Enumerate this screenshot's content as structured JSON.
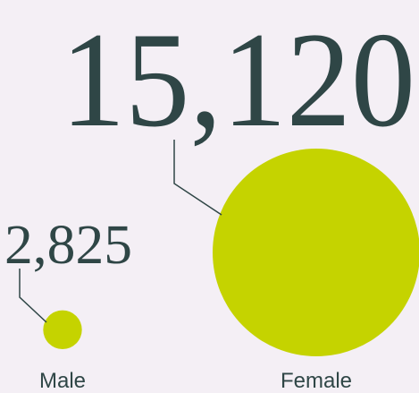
{
  "chart_data": {
    "type": "bubble",
    "categories": [
      "Male",
      "Female"
    ],
    "values": [
      2825,
      15120
    ],
    "value_labels": [
      "2,825",
      "15,120"
    ],
    "color": "#c5d300"
  }
}
